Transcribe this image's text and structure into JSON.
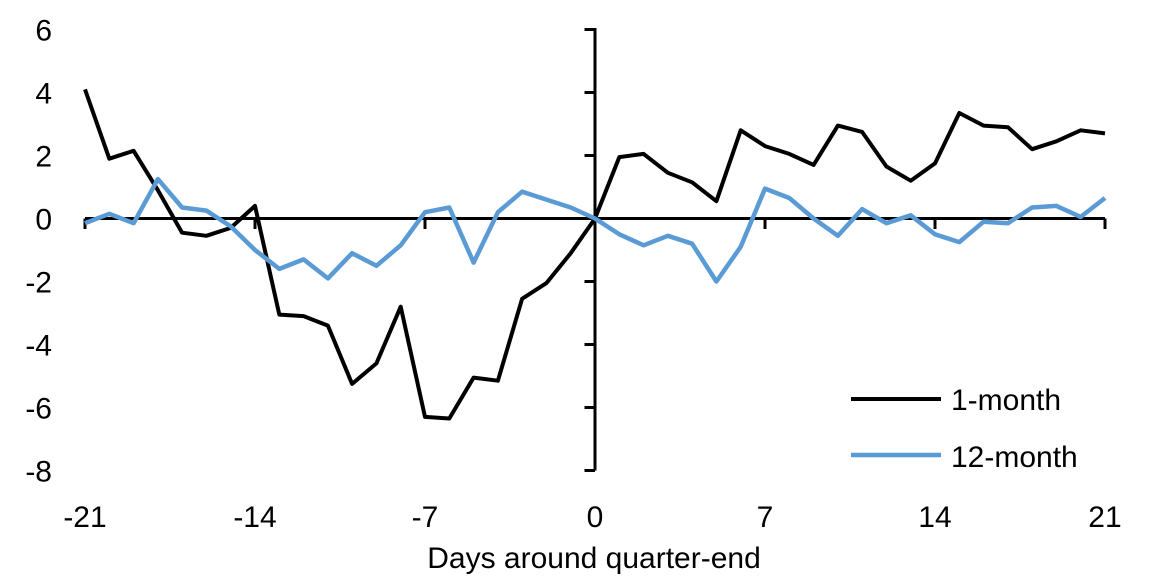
{
  "chart_data": {
    "type": "line",
    "xlabel": "Days around quarter-end",
    "ylabel": "",
    "title": "",
    "x": [
      -21,
      -20,
      -19,
      -18,
      -17,
      -16,
      -15,
      -14,
      -13,
      -12,
      -11,
      -10,
      -9,
      -8,
      -7,
      -6,
      -5,
      -4,
      -3,
      -2,
      -1,
      0,
      1,
      2,
      3,
      4,
      5,
      6,
      7,
      8,
      9,
      10,
      11,
      12,
      13,
      14,
      15,
      16,
      17,
      18,
      19,
      20,
      21
    ],
    "series": [
      {
        "name": "1-month",
        "color": "#000000",
        "values": [
          4.1,
          1.9,
          2.15,
          0.9,
          -0.45,
          -0.55,
          -0.3,
          0.4,
          -3.05,
          -3.1,
          -3.4,
          -5.25,
          -4.6,
          -2.8,
          -6.3,
          -6.35,
          -5.05,
          -5.15,
          -2.55,
          -2.05,
          -1.1,
          0.0,
          1.95,
          2.05,
          1.45,
          1.15,
          0.55,
          2.8,
          2.3,
          2.05,
          1.7,
          2.95,
          2.75,
          1.65,
          1.2,
          1.75,
          3.35,
          2.95,
          2.9,
          2.2,
          2.45,
          2.8,
          2.7
        ]
      },
      {
        "name": "12-month",
        "color": "#5B9BD5",
        "values": [
          -0.15,
          0.15,
          -0.15,
          1.25,
          0.35,
          0.25,
          -0.25,
          -1.0,
          -1.6,
          -1.3,
          -1.9,
          -1.1,
          -1.5,
          -0.85,
          0.2,
          0.35,
          -1.4,
          0.2,
          0.85,
          0.6,
          0.35,
          0.0,
          -0.5,
          -0.85,
          -0.55,
          -0.8,
          -2.0,
          -0.9,
          0.95,
          0.65,
          0.0,
          -0.55,
          0.3,
          -0.15,
          0.1,
          -0.5,
          -0.75,
          -0.1,
          -0.15,
          0.35,
          0.4,
          0.05,
          0.65
        ]
      }
    ],
    "x_ticks": [
      -21,
      -14,
      -7,
      0,
      7,
      14,
      21
    ],
    "y_ticks": [
      6,
      4,
      2,
      0,
      -2,
      -4,
      -6,
      -8
    ],
    "xlim": [
      -21,
      21
    ],
    "ylim": [
      -8,
      6
    ],
    "grid": false,
    "axes_cross_at_zero": true,
    "legend_position": "lower-right"
  }
}
